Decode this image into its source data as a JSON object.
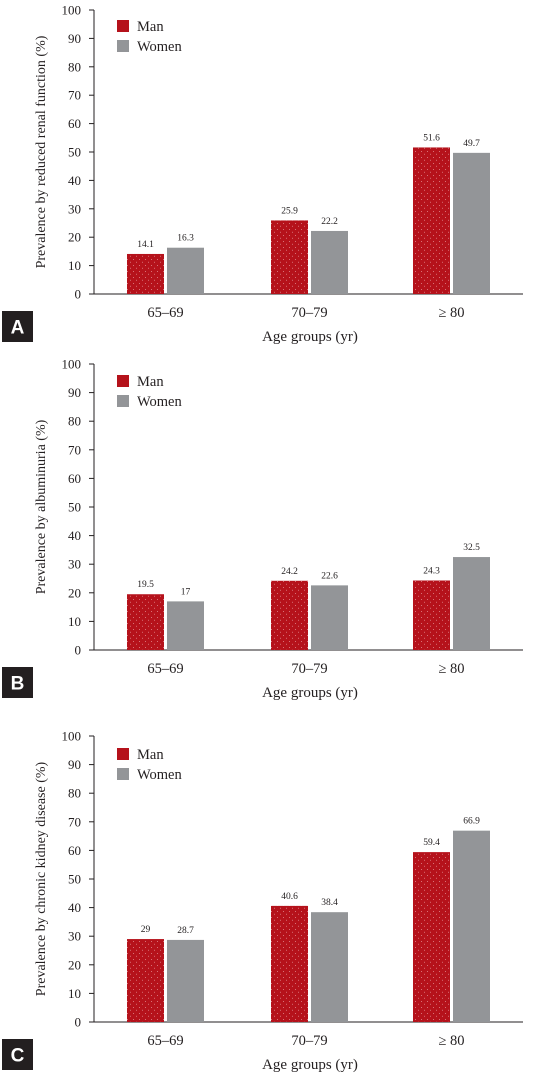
{
  "colors": {
    "man": "#b5121b",
    "women": "#939598",
    "axis": "#231f20",
    "letter_bg": "#231f20"
  },
  "chart_data": [
    {
      "type": "bar",
      "panel": "A",
      "categories": [
        "65–69",
        "70–79",
        "≥ 80"
      ],
      "series": [
        {
          "name": "Man",
          "values": [
            14.1,
            25.9,
            51.6
          ]
        },
        {
          "name": "Women",
          "values": [
            16.3,
            22.2,
            49.7
          ]
        }
      ],
      "value_labels": [
        [
          "14.1",
          "25.9",
          "51.6"
        ],
        [
          "16.3",
          "22.2",
          "49.7"
        ]
      ],
      "xlabel": "Age groups (yr)",
      "ylabel": "Prevalence by reduced renal function (%)",
      "ylim": [
        0,
        100
      ],
      "yticks": [
        0,
        10,
        20,
        30,
        40,
        50,
        60,
        70,
        80,
        90,
        100
      ],
      "legend": "top-left",
      "grid": false
    },
    {
      "type": "bar",
      "panel": "B",
      "categories": [
        "65–69",
        "70–79",
        "≥ 80"
      ],
      "series": [
        {
          "name": "Man",
          "values": [
            19.5,
            24.2,
            24.3
          ]
        },
        {
          "name": "Women",
          "values": [
            17,
            22.6,
            32.5
          ]
        }
      ],
      "value_labels": [
        [
          "19.5",
          "24.2",
          "24.3"
        ],
        [
          "17",
          "22.6",
          "32.5"
        ]
      ],
      "xlabel": "Age groups (yr)",
      "ylabel": "Prevalence by albuminuria (%)",
      "ylim": [
        0,
        100
      ],
      "yticks": [
        0,
        10,
        20,
        30,
        40,
        50,
        60,
        70,
        80,
        90,
        100
      ],
      "legend": "top-left",
      "grid": false
    },
    {
      "type": "bar",
      "panel": "C",
      "categories": [
        "65–69",
        "70–79",
        "≥ 80"
      ],
      "series": [
        {
          "name": "Man",
          "values": [
            29,
            40.6,
            59.4
          ]
        },
        {
          "name": "Women",
          "values": [
            28.7,
            38.4,
            66.9
          ]
        }
      ],
      "value_labels": [
        [
          "29",
          "40.6",
          "59.4"
        ],
        [
          "28.7",
          "38.4",
          "66.9"
        ]
      ],
      "xlabel": "Age groups (yr)",
      "ylabel": "Prevalence by chronic kidney disease (%)",
      "ylim": [
        0,
        100
      ],
      "yticks": [
        0,
        10,
        20,
        30,
        40,
        50,
        60,
        70,
        80,
        90,
        100
      ],
      "legend": "top-left",
      "grid": false
    }
  ]
}
